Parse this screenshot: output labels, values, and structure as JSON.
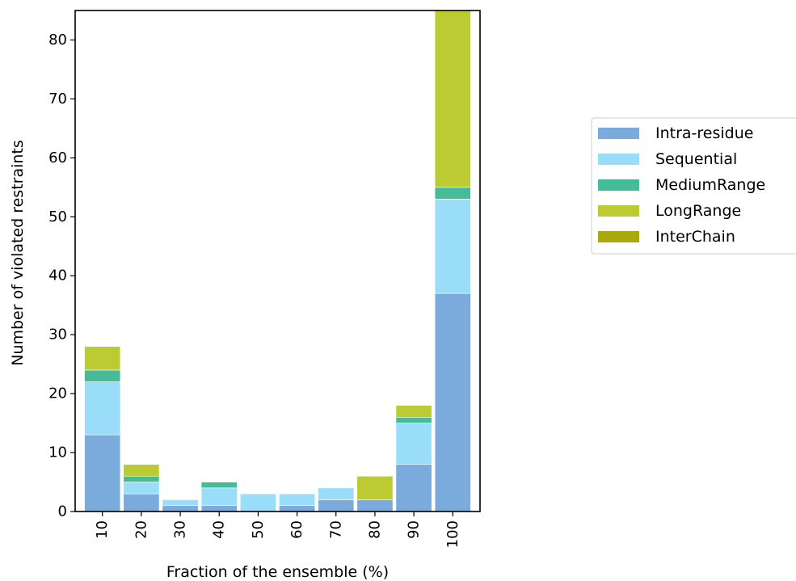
{
  "chart_data": {
    "type": "bar",
    "stacked": true,
    "title": "",
    "xlabel": "Fraction of the ensemble (%)",
    "ylabel": "Number of violated restraints",
    "categories": [
      "10",
      "20",
      "30",
      "40",
      "50",
      "60",
      "70",
      "80",
      "90",
      "100"
    ],
    "ylim": [
      0,
      85
    ],
    "yticks": [
      0,
      10,
      20,
      30,
      40,
      50,
      60,
      70,
      80
    ],
    "grid": false,
    "legend_position": "right",
    "series": [
      {
        "name": "Intra-residue",
        "color": "#7aabdc",
        "values": [
          13,
          3,
          1,
          1,
          0,
          1,
          2,
          2,
          8,
          37
        ]
      },
      {
        "name": "Sequential",
        "color": "#99ddf9",
        "values": [
          9,
          2,
          1,
          3,
          3,
          2,
          2,
          0,
          7,
          16
        ]
      },
      {
        "name": "MediumRange",
        "color": "#46bb98",
        "values": [
          2,
          1,
          0,
          1,
          0,
          0,
          0,
          0,
          1,
          2
        ]
      },
      {
        "name": "LongRange",
        "color": "#bccb31",
        "values": [
          4,
          2,
          0,
          0,
          0,
          0,
          0,
          4,
          2,
          30
        ]
      },
      {
        "name": "InterChain",
        "color": "#a9a90e",
        "values": [
          0,
          0,
          0,
          0,
          0,
          0,
          0,
          0,
          0,
          0
        ]
      }
    ]
  }
}
